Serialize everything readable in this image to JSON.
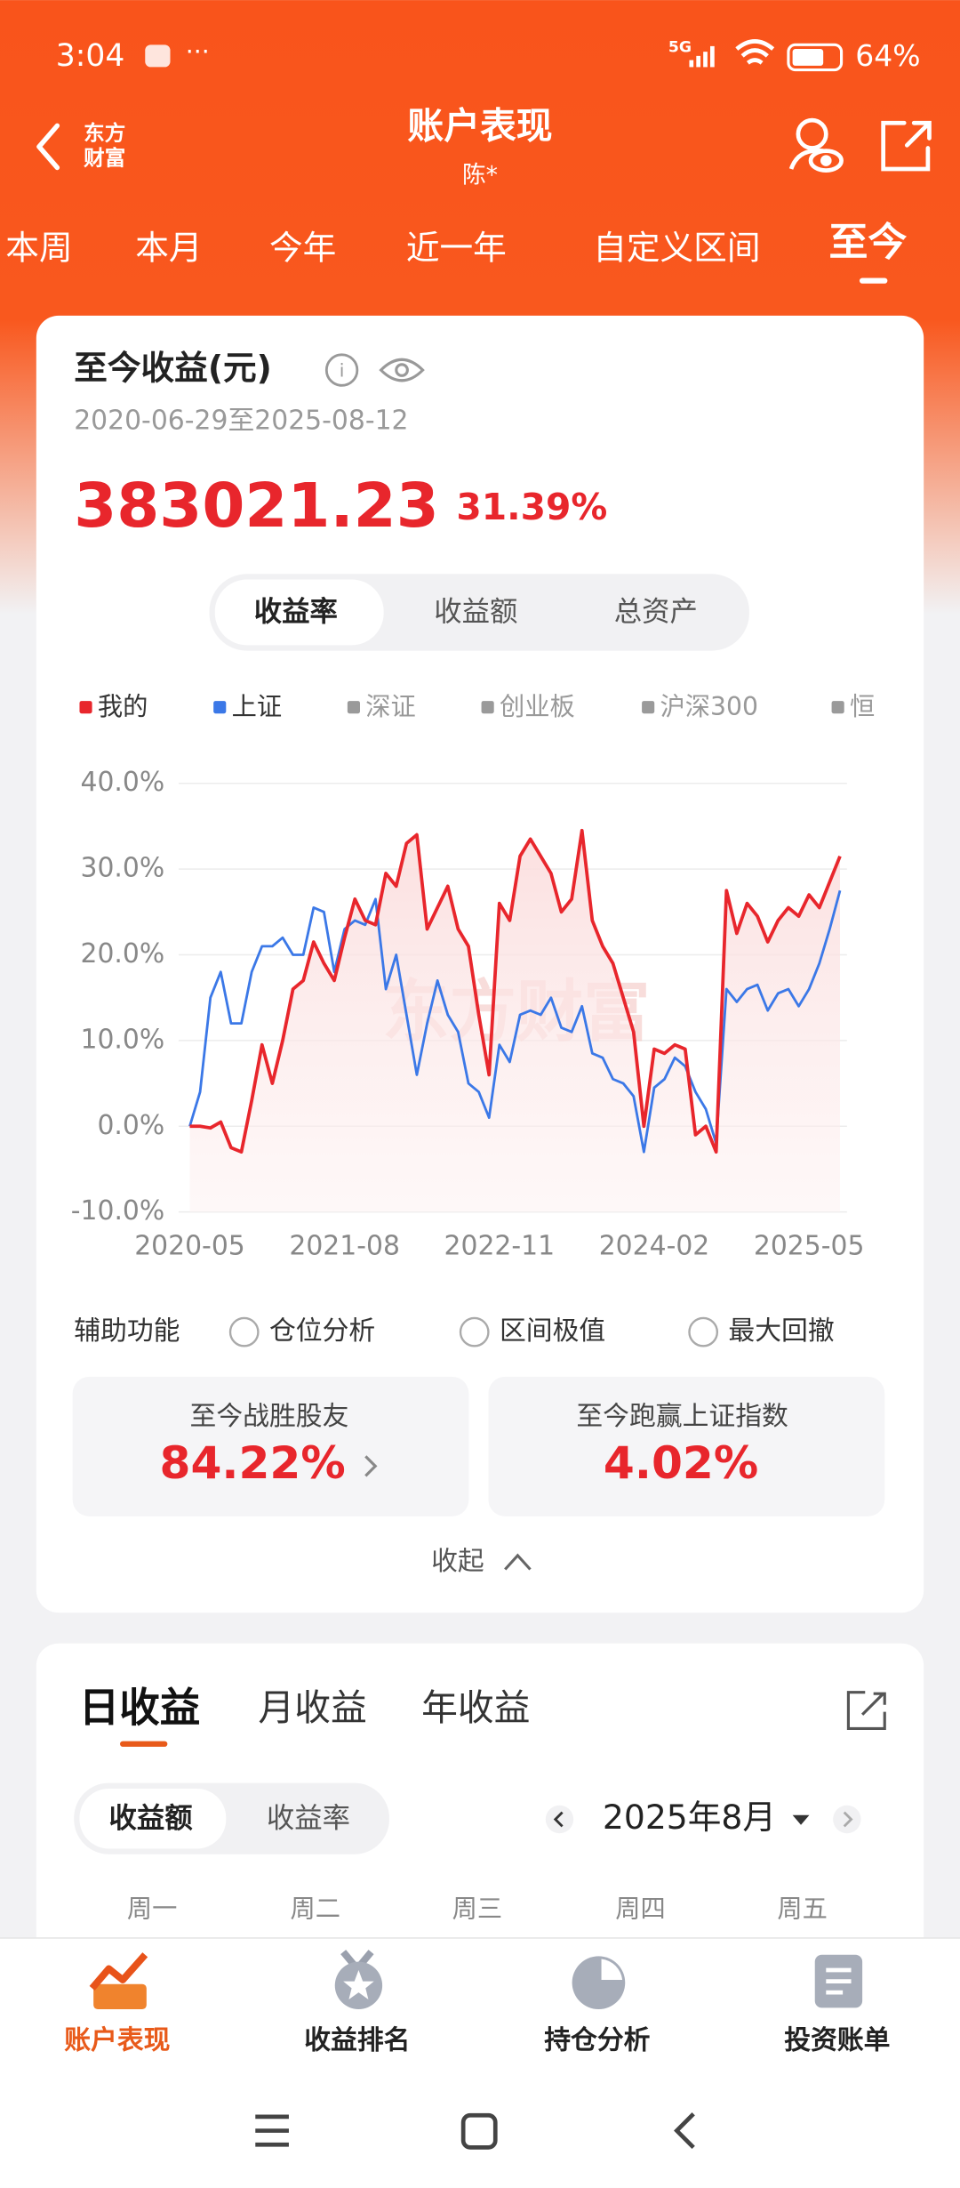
{
  "status_bar": {
    "time": "3:04",
    "network": "5G",
    "battery": "64%"
  },
  "header": {
    "logo": [
      "东方",
      "财富"
    ],
    "title": "账户表现",
    "subtitle": "陈*"
  },
  "period_tabs": [
    "本周",
    "本月",
    "今年",
    "近一年",
    "自定义区间",
    "至今"
  ],
  "summary": {
    "title": "至今收益(元)",
    "date_range": "2020-06-29至2025-08-12",
    "amount": "383021.23",
    "rate": "31.39%"
  },
  "chart_switch": [
    "收益率",
    "收益额",
    "总资产"
  ],
  "inactive_legend": [
    "深证",
    "创业板",
    "沪深300",
    "恒"
  ],
  "chart_data": {
    "type": "line",
    "watermark": "东方财富",
    "categories": [
      "2020-05",
      null,
      null,
      null,
      null,
      null,
      null,
      null,
      null,
      null,
      null,
      null,
      null,
      null,
      null,
      "2021-08",
      null,
      null,
      null,
      null,
      null,
      null,
      null,
      null,
      null,
      null,
      null,
      null,
      null,
      null,
      "2022-11",
      null,
      null,
      null,
      null,
      null,
      null,
      null,
      null,
      null,
      null,
      null,
      null,
      null,
      null,
      "2024-02",
      null,
      null,
      null,
      null,
      null,
      null,
      null,
      null,
      null,
      null,
      null,
      null,
      null,
      null,
      "2025-05",
      null,
      null,
      null
    ],
    "series": [
      {
        "name": "我的",
        "color": "#e8262c",
        "values": [
          0,
          0,
          -0.2,
          0.5,
          -2.5,
          -3,
          3,
          9.5,
          5,
          10,
          16,
          17,
          21.5,
          19,
          17,
          22,
          26.5,
          24,
          23.5,
          29.5,
          28,
          33,
          34,
          23,
          25.5,
          28,
          23,
          21,
          13,
          6,
          26,
          24,
          31.5,
          33.5,
          31.5,
          29.5,
          25,
          26.5,
          34.5,
          24,
          21,
          19,
          15,
          11,
          0,
          9,
          8.5,
          9.5,
          9,
          -1,
          0,
          -3,
          27.5,
          22.5,
          26,
          24.5,
          21.5,
          24,
          25.5,
          24.5,
          27,
          25.5,
          28.5,
          31.5
        ]
      },
      {
        "name": "上证",
        "color": "#3b78e7",
        "values": [
          0,
          4,
          15,
          18,
          12,
          12,
          18,
          21,
          21,
          22,
          20,
          20,
          25.5,
          25,
          18,
          23,
          24,
          23.5,
          26.5,
          16,
          20,
          13,
          6,
          12,
          17,
          13,
          11,
          5,
          4,
          1,
          9.5,
          7.5,
          13,
          13.5,
          13,
          15,
          11.5,
          11,
          14,
          8.5,
          8,
          5.5,
          5,
          3.5,
          -3,
          4.5,
          5.5,
          8,
          7,
          4,
          2,
          -2,
          16,
          14.5,
          16,
          16.5,
          13.5,
          15.5,
          16,
          14,
          16,
          19,
          23,
          27.5
        ]
      }
    ],
    "ylim": [
      -10,
      40
    ],
    "yticks": [
      {
        "value": -10,
        "label": "-10.0%"
      },
      {
        "value": 0,
        "label": "0.0%"
      },
      {
        "value": 10,
        "label": "10.0%"
      },
      {
        "value": 20,
        "label": "20.0%"
      },
      {
        "value": 30,
        "label": "30.0%"
      },
      {
        "value": 40,
        "label": "40.0%"
      }
    ],
    "grid": true,
    "area_under": "我的"
  },
  "aux": {
    "label": "辅助功能",
    "options": [
      "仓位分析",
      "区间极值",
      "最大回撤"
    ]
  },
  "stats": [
    {
      "label": "至今战胜股友",
      "value": "84.22%"
    },
    {
      "label": "至今跑赢上证指数",
      "value": "4.02%"
    }
  ],
  "collapse": "收起",
  "earnings_tabs": [
    "日收益",
    "月收益",
    "年收益"
  ],
  "earnings_switch": [
    "收益额",
    "收益率"
  ],
  "month": "2025年8月",
  "weekdays": [
    "周一",
    "周二",
    "周三",
    "周四",
    "周五"
  ],
  "bottom_nav": [
    "账户表现",
    "收益排名",
    "持仓分析",
    "投资账单"
  ]
}
